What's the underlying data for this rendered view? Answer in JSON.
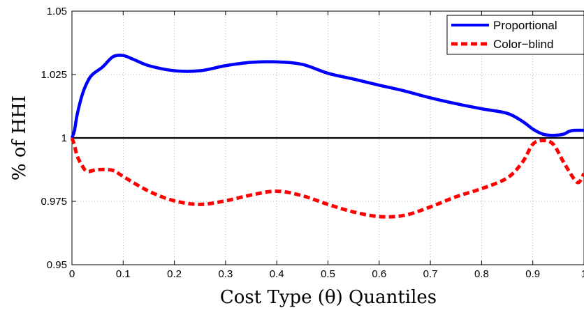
{
  "chart_data": {
    "type": "line",
    "xlabel": "Cost Type (θ) Quantiles",
    "ylabel": "% of HHI",
    "xlim": [
      0,
      1
    ],
    "ylim": [
      0.95,
      1.05
    ],
    "x_ticks": [
      0,
      0.1,
      0.2,
      0.3,
      0.4,
      0.5,
      0.6,
      0.7,
      0.8,
      0.9,
      1
    ],
    "x_tick_labels": [
      "0",
      "0.1",
      "0.2",
      "0.3",
      "0.4",
      "0.5",
      "0.6",
      "0.7",
      "0.8",
      "0.9",
      "1"
    ],
    "y_ticks": [
      0.95,
      0.975,
      1,
      1.025,
      1.05
    ],
    "y_tick_labels": [
      "0.95",
      "0.975",
      "1",
      "1.025",
      "1.05"
    ],
    "grid": true,
    "legend_position": "top-right",
    "reference_line": {
      "y": 1,
      "color": "#000000"
    },
    "series": [
      {
        "name": "Proportional",
        "color": "#0000ff",
        "style": "solid",
        "points": [
          [
            0,
            1.0
          ],
          [
            0.005,
            1.003
          ],
          [
            0.01,
            1.009
          ],
          [
            0.02,
            1.017
          ],
          [
            0.03,
            1.022
          ],
          [
            0.04,
            1.025
          ],
          [
            0.06,
            1.028
          ],
          [
            0.08,
            1.032
          ],
          [
            0.1,
            1.0325
          ],
          [
            0.12,
            1.031
          ],
          [
            0.15,
            1.0285
          ],
          [
            0.2,
            1.0265
          ],
          [
            0.25,
            1.0265
          ],
          [
            0.3,
            1.0285
          ],
          [
            0.35,
            1.0298
          ],
          [
            0.4,
            1.03
          ],
          [
            0.45,
            1.029
          ],
          [
            0.5,
            1.0255
          ],
          [
            0.55,
            1.0232
          ],
          [
            0.6,
            1.0208
          ],
          [
            0.65,
            1.0185
          ],
          [
            0.7,
            1.0158
          ],
          [
            0.75,
            1.0135
          ],
          [
            0.8,
            1.0115
          ],
          [
            0.85,
            1.0097
          ],
          [
            0.88,
            1.0065
          ],
          [
            0.9,
            1.0035
          ],
          [
            0.92,
            1.0015
          ],
          [
            0.94,
            1.001
          ],
          [
            0.96,
            1.0015
          ],
          [
            0.97,
            1.0025
          ],
          [
            0.98,
            1.003
          ],
          [
            1.0,
            1.003
          ]
        ]
      },
      {
        "name": "Color−blind",
        "color": "#ff0000",
        "style": "dashed",
        "points": [
          [
            0,
            1.0
          ],
          [
            0.005,
            0.997
          ],
          [
            0.01,
            0.993
          ],
          [
            0.02,
            0.989
          ],
          [
            0.03,
            0.9868
          ],
          [
            0.05,
            0.9875
          ],
          [
            0.08,
            0.9872
          ],
          [
            0.1,
            0.9848
          ],
          [
            0.15,
            0.979
          ],
          [
            0.2,
            0.9752
          ],
          [
            0.25,
            0.9738
          ],
          [
            0.3,
            0.9752
          ],
          [
            0.35,
            0.9775
          ],
          [
            0.4,
            0.979
          ],
          [
            0.45,
            0.9772
          ],
          [
            0.5,
            0.9738
          ],
          [
            0.55,
            0.9708
          ],
          [
            0.6,
            0.969
          ],
          [
            0.65,
            0.9695
          ],
          [
            0.7,
            0.9728
          ],
          [
            0.75,
            0.9768
          ],
          [
            0.8,
            0.98
          ],
          [
            0.85,
            0.9842
          ],
          [
            0.88,
            0.9905
          ],
          [
            0.9,
            0.9975
          ],
          [
            0.92,
            0.999
          ],
          [
            0.94,
            0.9975
          ],
          [
            0.96,
            0.9905
          ],
          [
            0.98,
            0.984
          ],
          [
            0.99,
            0.9825
          ],
          [
            1.0,
            0.986
          ]
        ]
      }
    ]
  }
}
